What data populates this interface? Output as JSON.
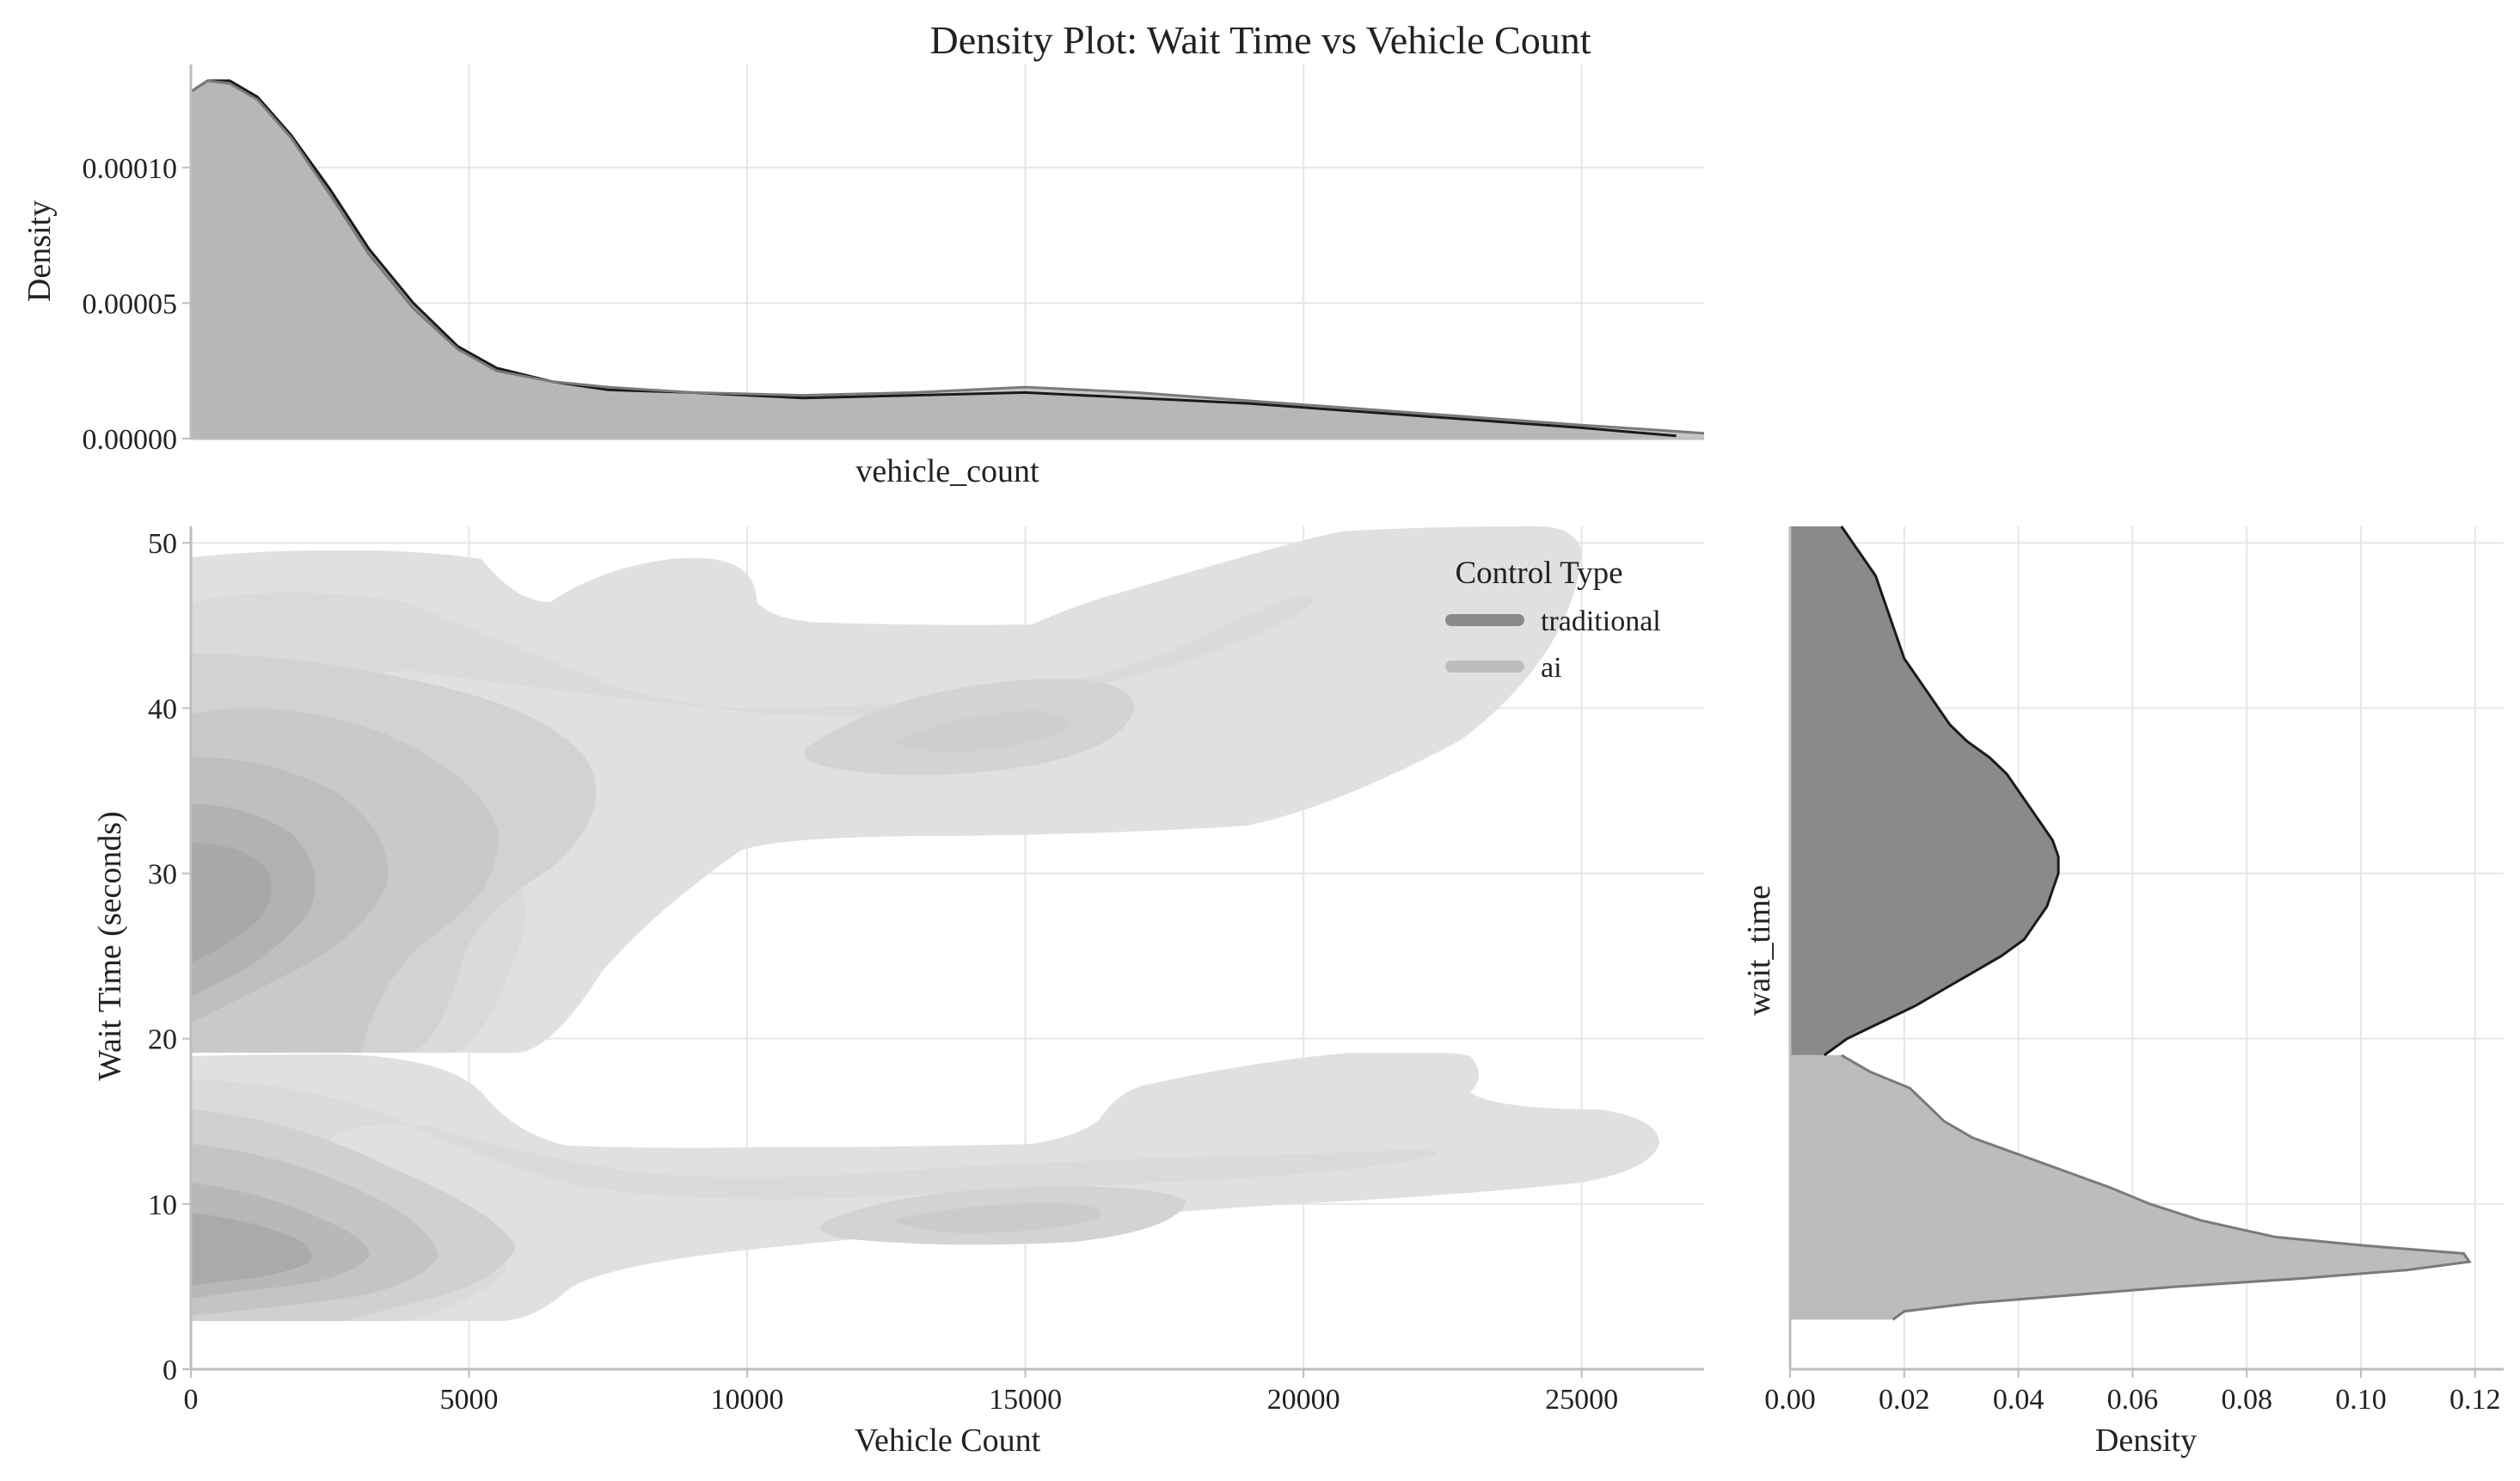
{
  "chart_data": [
    {
      "id": "top_marginal",
      "type": "area",
      "title": "Density Plot: Wait Time vs Vehicle Count",
      "xlabel": "vehicle_count",
      "ylabel": "Density",
      "xlim": [
        0,
        27200
      ],
      "ylim": [
        0,
        0.000138
      ],
      "yticks": [
        0.0,
        5e-05,
        0.0001
      ],
      "ytick_labels": [
        "0.00000",
        "0.00005",
        "0.00010"
      ],
      "xgrid": [
        5000,
        10000,
        15000,
        20000,
        25000
      ],
      "series": [
        {
          "name": "traditional",
          "color": "#8a8a8a",
          "line": "#1a1a1a",
          "x": [
            0,
            300,
            700,
            1200,
            1800,
            2500,
            3200,
            4000,
            4800,
            5500,
            6500,
            7500,
            9000,
            11000,
            13000,
            15000,
            17000,
            19000,
            21000,
            23000,
            25000,
            26700
          ],
          "y": [
            0.000128,
            0.000132,
            0.000132,
            0.000126,
            0.000112,
            9.2e-05,
            7e-05,
            5e-05,
            3.4e-05,
            2.6e-05,
            2.1e-05,
            1.8e-05,
            1.7e-05,
            1.5e-05,
            1.6e-05,
            1.7e-05,
            1.5e-05,
            1.3e-05,
            1e-05,
            7e-06,
            4e-06,
            1e-06
          ]
        },
        {
          "name": "ai",
          "color": "#bcbcbc",
          "line": "#7a7a7a",
          "x": [
            0,
            300,
            700,
            1200,
            1800,
            2500,
            3200,
            4000,
            4800,
            5500,
            6500,
            7500,
            9000,
            11000,
            13000,
            15000,
            17000,
            19000,
            21000,
            23000,
            25000,
            27200
          ],
          "y": [
            0.000128,
            0.000132,
            0.000131,
            0.000125,
            0.000111,
            9e-05,
            6.8e-05,
            4.8e-05,
            3.3e-05,
            2.5e-05,
            2.1e-05,
            1.9e-05,
            1.7e-05,
            1.6e-05,
            1.7e-05,
            1.9e-05,
            1.7e-05,
            1.4e-05,
            1.1e-05,
            8e-06,
            5e-06,
            2e-06
          ]
        }
      ]
    },
    {
      "id": "joint",
      "type": "contour",
      "xlabel": "Vehicle Count",
      "ylabel": "Wait Time (seconds)",
      "xlim": [
        0,
        27200
      ],
      "ylim": [
        0,
        51
      ],
      "xticks": [
        0,
        5000,
        10000,
        15000,
        20000,
        25000
      ],
      "yticks": [
        0,
        10,
        20,
        30,
        40,
        50
      ],
      "legend": {
        "title": "Control Type",
        "position": "top-right",
        "entries": [
          {
            "label": "traditional",
            "color": "#8a8a8a"
          },
          {
            "label": "ai",
            "color": "#bdbdbd"
          }
        ]
      },
      "series": [
        {
          "name": "traditional",
          "wait_range": [
            19,
            51
          ],
          "peak": {
            "vehicle_count": 1500,
            "wait_time": 30
          },
          "secondary_mode": {
            "vehicle_count": 16000,
            "wait_time": 39
          }
        },
        {
          "name": "ai",
          "wait_range": [
            3,
            19
          ],
          "peak": {
            "vehicle_count": 1500,
            "wait_time": 7
          },
          "secondary_mode": {
            "vehicle_count": 15500,
            "wait_time": 9
          }
        }
      ]
    },
    {
      "id": "right_marginal",
      "type": "area",
      "xlabel": "Density",
      "ylabel": "wait_time",
      "xlim": [
        0,
        0.125
      ],
      "ylim": [
        0,
        51
      ],
      "xticks": [
        0.0,
        0.02,
        0.04,
        0.06,
        0.08,
        0.1,
        0.12
      ],
      "xtick_labels": [
        "0.00",
        "0.02",
        "0.04",
        "0.06",
        "0.08",
        "0.10",
        "0.12"
      ],
      "series": [
        {
          "name": "traditional",
          "color": "#8a8a8a",
          "line": "#1a1a1a",
          "wait": [
            19,
            20,
            21,
            22,
            23,
            24,
            25,
            26,
            27,
            28,
            29,
            30,
            31,
            32,
            33,
            34,
            35,
            36,
            37,
            38,
            39,
            40,
            41,
            42,
            43,
            44,
            45,
            46,
            47,
            48,
            49,
            50,
            51
          ],
          "density": [
            0.006,
            0.01,
            0.016,
            0.022,
            0.027,
            0.032,
            0.037,
            0.041,
            0.043,
            0.045,
            0.046,
            0.047,
            0.047,
            0.046,
            0.044,
            0.042,
            0.04,
            0.038,
            0.035,
            0.031,
            0.028,
            0.026,
            0.024,
            0.022,
            0.02,
            0.019,
            0.018,
            0.017,
            0.016,
            0.015,
            0.013,
            0.011,
            0.009
          ]
        },
        {
          "name": "ai",
          "color": "#bcbcbc",
          "line": "#7a7a7a",
          "wait": [
            3,
            3.5,
            4,
            4.5,
            5,
            5.5,
            6,
            6.5,
            7,
            7.5,
            8,
            9,
            10,
            11,
            12,
            13,
            14,
            15,
            16,
            17,
            18,
            19
          ],
          "density": [
            0.018,
            0.02,
            0.032,
            0.05,
            0.068,
            0.09,
            0.108,
            0.119,
            0.118,
            0.1,
            0.085,
            0.072,
            0.063,
            0.056,
            0.048,
            0.04,
            0.032,
            0.027,
            0.024,
            0.021,
            0.014,
            0.009
          ]
        }
      ]
    }
  ]
}
